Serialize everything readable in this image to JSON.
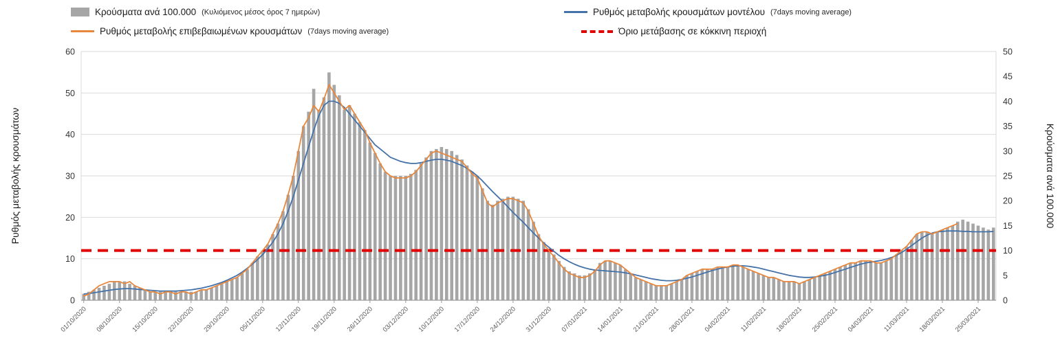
{
  "legend": {
    "items": [
      {
        "id": "cases_bars",
        "label": "Κρούσματα ανά 100.000",
        "sublabel": "(Κυλιόμενος μέσος όρος 7 ημερών)",
        "swatch": "bar",
        "color": "#a6a6a6"
      },
      {
        "id": "model_rate",
        "label": "Ρυθμός μεταβολής κρουσμάτων μοντέλου",
        "sublabel": "(7days moving average)",
        "swatch": "line",
        "color": "#4472a8"
      },
      {
        "id": "confirmed_rate",
        "label": "Ρυθμός μεταβολής επιβεβαιωμένων κρουσμάτων",
        "sublabel": "(7days moving average)",
        "swatch": "line",
        "color": "#e8873c"
      },
      {
        "id": "threshold",
        "label": "Όριο μετάβασης σε κόκκινη περιοχή",
        "sublabel": "",
        "swatch": "dashed",
        "color": "#e00000"
      }
    ]
  },
  "colors": {
    "grid": "#d9d9d9",
    "axis_line": "#9b9b9b",
    "tick_text": "#333333",
    "x_tick_text": "#595959",
    "background": "#ffffff"
  },
  "chart_data": {
    "type": "combo-bar-line",
    "title": "",
    "axes": {
      "left": {
        "title": "Ρυθμός μεταβολής κρουσμάτων",
        "min": 0,
        "max": 60,
        "ticks": [
          0,
          10,
          20,
          30,
          40,
          50,
          60
        ]
      },
      "right": {
        "title": "Κρούσματα ανά 100.000",
        "min": 0,
        "max": 50,
        "ticks": [
          0,
          5,
          10,
          15,
          20,
          25,
          30,
          35,
          40,
          45,
          50
        ]
      }
    },
    "x_tick_labels": [
      "01/10/2020",
      "08/10/2020",
      "15/10/2020",
      "22/10/2020",
      "29/10/2020",
      "05/11/2020",
      "12/11/2020",
      "19/11/2020",
      "26/11/2020",
      "03/12/2020",
      "10/12/2020",
      "17/12/2020",
      "24/12/2020",
      "31/12/2020",
      "07/01/2021",
      "14/01/2021",
      "21/01/2021",
      "28/01/2021",
      "04/02/2021",
      "11/02/2021",
      "18/02/2021",
      "25/02/2021",
      "04/03/2021",
      "11/03/2021",
      "18/03/2021",
      "25/03/2021"
    ],
    "x_tick_day_index": [
      0,
      7,
      14,
      21,
      28,
      35,
      42,
      49,
      56,
      63,
      70,
      77,
      84,
      91,
      98,
      105,
      112,
      119,
      126,
      133,
      140,
      147,
      154,
      161,
      168,
      175
    ],
    "threshold": {
      "axis": "right",
      "value": 10,
      "color": "#e00000",
      "label": "Όριο μετάβασης σε κόκκινη περιοχή"
    },
    "series": [
      {
        "id": "cases_bars",
        "name": "Κρούσματα ανά 100.000 (Κυλιόμενος μέσος όρος 7 ημερών)",
        "type": "bar",
        "axis": "right",
        "color": "#a6a6a6",
        "values": [
          1.3,
          1.7,
          2.1,
          2.5,
          2.9,
          3.3,
          3.8,
          3.8,
          3.8,
          3.3,
          2.9,
          2.5,
          2.1,
          1.7,
          1.7,
          1.7,
          1.7,
          1.7,
          1.7,
          1.7,
          1.7,
          1.7,
          1.7,
          2.1,
          2.1,
          2.5,
          2.9,
          3.3,
          3.8,
          4.2,
          4.6,
          5.4,
          6.2,
          7.5,
          8.8,
          10,
          11.2,
          13.3,
          15.4,
          17.9,
          21.2,
          25,
          30,
          35,
          37.9,
          42.5,
          38.3,
          40.8,
          45.8,
          43.3,
          41.2,
          38.3,
          39.2,
          37.5,
          35.8,
          34.2,
          31.7,
          29.6,
          27.5,
          25.8,
          25,
          25,
          25,
          25,
          25.4,
          26.2,
          27.5,
          28.7,
          30,
          30.4,
          30.8,
          30.4,
          30,
          29.2,
          28.3,
          27.1,
          25.8,
          25,
          22.5,
          20,
          19.2,
          20,
          20.4,
          20.8,
          20.8,
          20.4,
          20,
          18.3,
          15.8,
          13.3,
          11.7,
          10.4,
          9.2,
          7.9,
          6.7,
          5.8,
          5.4,
          5,
          5,
          5.4,
          6.2,
          7.5,
          7.9,
          7.9,
          7.5,
          7.1,
          6.2,
          5.4,
          4.6,
          4.2,
          3.8,
          3.3,
          2.9,
          2.9,
          2.9,
          3.3,
          3.8,
          4.2,
          5,
          5.4,
          5.8,
          6.2,
          6.2,
          6.2,
          6.7,
          6.7,
          6.7,
          7.1,
          7.1,
          6.7,
          6.2,
          5.8,
          5.4,
          5,
          4.6,
          4.6,
          4.2,
          3.8,
          3.8,
          3.8,
          3.3,
          3.8,
          4.2,
          4.6,
          5,
          5.4,
          5.8,
          6.2,
          6.7,
          7.1,
          7.5,
          7.5,
          7.9,
          7.9,
          7.9,
          7.5,
          7.5,
          7.9,
          8.3,
          9.2,
          10,
          10.8,
          12.1,
          13.3,
          13.8,
          13.8,
          13.3,
          13.8,
          14.2,
          14.6,
          15,
          15.8,
          16.2,
          15.8,
          15.4,
          15,
          14.6,
          14.2,
          14.6
        ]
      },
      {
        "id": "model_rate",
        "name": "Ρυθμός μεταβολής κρουσμάτων μοντέλου (7days moving average)",
        "type": "line",
        "axis": "left",
        "color": "#4472a8",
        "values": [
          1.5,
          1.6,
          1.8,
          2,
          2.2,
          2.4,
          2.6,
          2.7,
          2.8,
          2.8,
          2.7,
          2.6,
          2.5,
          2.4,
          2.3,
          2.2,
          2.2,
          2.2,
          2.2,
          2.3,
          2.4,
          2.5,
          2.7,
          2.9,
          3.2,
          3.5,
          3.9,
          4.3,
          4.8,
          5.4,
          6,
          6.8,
          7.7,
          8.7,
          9.8,
          11,
          12.4,
          14,
          16,
          18.5,
          21.5,
          25,
          29,
          33,
          37,
          41,
          44.5,
          47,
          48,
          48,
          47.5,
          46.5,
          45,
          43.5,
          42,
          40.5,
          39,
          37.5,
          36.5,
          35.5,
          34.5,
          34,
          33.5,
          33.2,
          33,
          33,
          33.2,
          33.5,
          33.8,
          34,
          34,
          33.8,
          33.5,
          33,
          32.5,
          31.8,
          31,
          30,
          28.8,
          27.5,
          26.2,
          25,
          23.8,
          22.5,
          21.2,
          20,
          18.8,
          17.5,
          16.2,
          15,
          13.8,
          12.8,
          11.8,
          10.8,
          10,
          9.3,
          8.7,
          8.2,
          7.8,
          7.5,
          7.3,
          7.2,
          7.1,
          7,
          6.9,
          6.8,
          6.6,
          6.4,
          6.1,
          5.8,
          5.5,
          5.2,
          5,
          4.8,
          4.7,
          4.7,
          4.8,
          5,
          5.3,
          5.6,
          6,
          6.4,
          6.8,
          7.2,
          7.5,
          7.8,
          8,
          8.2,
          8.3,
          8.3,
          8.2,
          8,
          7.8,
          7.5,
          7.2,
          6.9,
          6.6,
          6.3,
          6,
          5.8,
          5.6,
          5.5,
          5.5,
          5.6,
          5.8,
          6,
          6.3,
          6.7,
          7.1,
          7.5,
          7.9,
          8.3,
          8.7,
          9,
          9.2,
          9.4,
          9.6,
          9.9,
          10.3,
          10.8,
          11.5,
          12.3,
          13.2,
          14.1,
          15,
          15.7,
          16.2,
          16.5,
          16.6,
          16.7,
          16.7,
          16.7,
          16.6,
          16.6,
          16.5,
          16.5,
          16.5,
          16.5,
          16.6
        ]
      },
      {
        "id": "confirmed_rate",
        "name": "Ρυθμός μεταβολής επιβεβαιωμένων κρουσμάτων (7days moving average)",
        "type": "line",
        "axis": "left",
        "color": "#e8873c",
        "values": [
          1,
          1.5,
          2.5,
          3.5,
          4,
          4.5,
          4.5,
          4.5,
          4,
          4.5,
          3.5,
          3,
          2.5,
          2,
          2,
          1.5,
          2,
          2,
          1.5,
          2,
          2,
          1.5,
          2,
          2.5,
          2.5,
          3,
          3.5,
          4,
          4.5,
          5,
          5.5,
          6.5,
          7.5,
          9,
          10.5,
          12,
          13.5,
          16,
          18.5,
          21.5,
          25.5,
          30,
          36,
          42,
          44,
          47,
          45.5,
          48.5,
          52,
          50,
          48,
          46,
          47,
          45,
          43,
          41,
          38,
          35.5,
          33,
          31,
          30,
          29.5,
          29.5,
          29.5,
          30,
          31,
          32.5,
          34,
          35.5,
          36,
          35.5,
          35,
          34.5,
          34,
          33.5,
          32,
          30.5,
          29.5,
          26.5,
          23.5,
          22.5,
          23.5,
          24,
          24.5,
          24.5,
          24,
          23.5,
          21.5,
          18.5,
          15.5,
          13.5,
          12,
          10.5,
          9,
          7.5,
          6.5,
          6,
          5.5,
          5.5,
          6,
          7,
          8.5,
          9.5,
          9.5,
          9,
          8.5,
          7.5,
          6.5,
          5.5,
          5,
          4.5,
          4,
          3.5,
          3.5,
          3.5,
          4,
          4.5,
          5,
          6,
          6.5,
          7,
          7.5,
          7.5,
          7.5,
          8,
          8,
          8,
          8.5,
          8.5,
          8,
          7.5,
          7,
          6.5,
          6,
          5.5,
          5.5,
          5,
          4.5,
          4.5,
          4.5,
          4,
          4.5,
          5,
          5.5,
          6,
          6.5,
          7,
          7.5,
          8,
          8.5,
          9,
          9,
          9.5,
          9.5,
          9.5,
          9,
          9,
          9.5,
          10,
          11,
          12,
          13,
          14.5,
          16,
          16.5,
          16.5,
          16,
          16.5,
          17,
          17.5,
          18,
          18.5,
          null,
          null,
          null,
          null,
          null,
          null,
          null
        ]
      }
    ]
  }
}
